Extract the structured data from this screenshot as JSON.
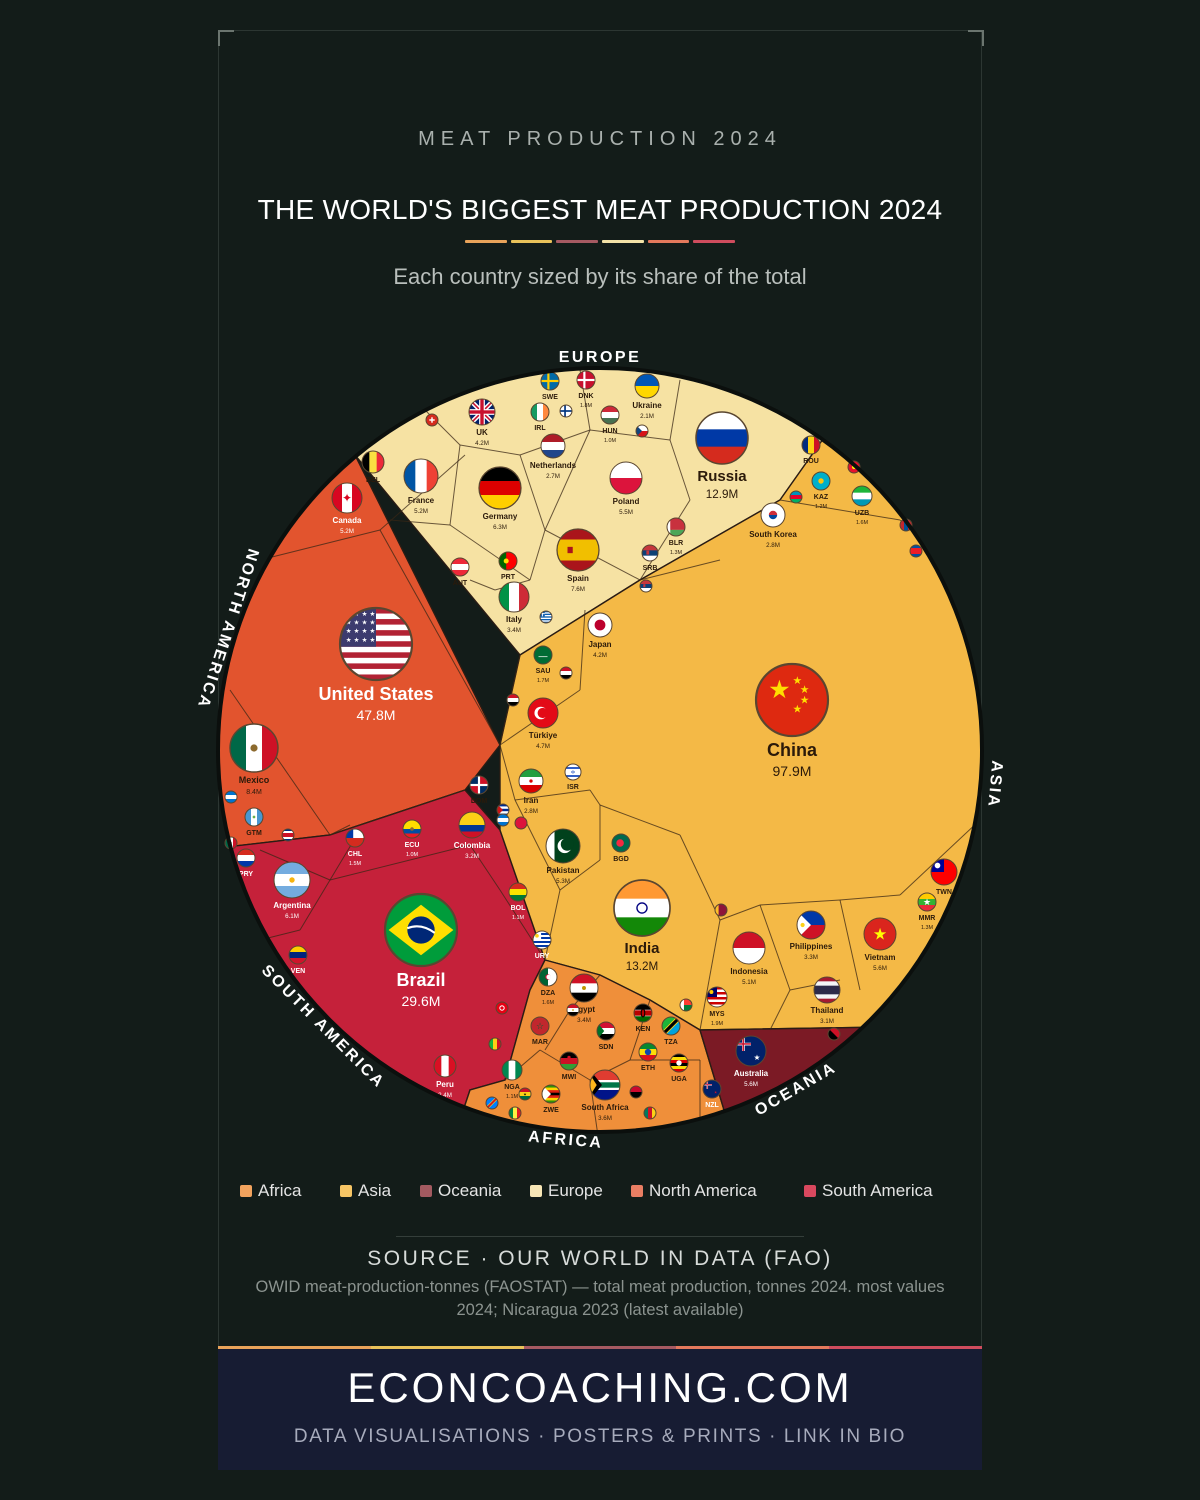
{
  "header": {
    "kicker": "MEAT PRODUCTION 2024",
    "title": "THE WORLD'S BIGGEST MEAT PRODUCTION 2024",
    "subtitle": "Each country sized by its share of the total"
  },
  "colors": {
    "background": "#131c19",
    "Africa": "#ef8f3a",
    "Asia": "#f4b946",
    "Oceania": "#7b1a25",
    "Europe": "#f6e2a3",
    "North America": "#e2542e",
    "South America": "#c5213a",
    "legend_Africa": "#f2a35e",
    "legend_Asia": "#f6c565",
    "legend_Oceania": "#a35a60",
    "legend_Europe": "#f7e6b6",
    "legend_North America": "#e97e63",
    "legend_South America": "#d9485e"
  },
  "chart_data": {
    "type": "voronoi-treemap",
    "unit": "tonnes",
    "regions": [
      "EUROPE",
      "ASIA",
      "OCEANIA",
      "AFRICA",
      "SOUTH AMERICA",
      "NORTH AMERICA"
    ],
    "legend": [
      "Africa",
      "Asia",
      "Oceania",
      "Europe",
      "North America",
      "South America"
    ],
    "legend_placement": "bottom",
    "countries": [
      {
        "label": "China",
        "region": "Asia",
        "value_label": "97.9M",
        "value": 97900000,
        "flag": "china-flag-icon"
      },
      {
        "label": "United States",
        "region": "North America",
        "value_label": "47.8M",
        "value": 47800000,
        "flag": "usa-flag-icon"
      },
      {
        "label": "Brazil",
        "region": "South America",
        "value_label": "29.6M",
        "value": 29600000,
        "flag": "brazil-flag-icon"
      },
      {
        "label": "India",
        "region": "Asia",
        "value_label": "13.2M",
        "value": 13200000,
        "flag": "india-flag-icon"
      },
      {
        "label": "Russia",
        "region": "Europe",
        "value_label": "12.9M",
        "value": 12900000,
        "flag": "russia-flag-icon"
      },
      {
        "label": "Mexico",
        "region": "North America",
        "value_label": "8.4M",
        "value": 8400000,
        "flag": "mexico-flag-icon"
      },
      {
        "label": "Germany",
        "region": "Europe",
        "value_label": "6.3M",
        "value": 6300000,
        "flag": "germany-flag-icon"
      },
      {
        "label": "Spain",
        "region": "Europe",
        "value_label": "7.6M",
        "value": 7600000,
        "flag": "spain-flag-icon"
      },
      {
        "label": "Vietnam",
        "region": "Asia",
        "value_label": "5.6M",
        "value": 5600000,
        "flag": "vietnam-flag-icon"
      },
      {
        "label": "Australia",
        "region": "Oceania",
        "value_label": "5.6M",
        "value": 5600000,
        "flag": "australia-flag-icon"
      },
      {
        "label": "Poland",
        "region": "Europe",
        "value_label": "5.5M",
        "value": 5500000,
        "flag": "poland-flag-icon"
      },
      {
        "label": "Pakistan",
        "region": "Asia",
        "value_label": "5.3M",
        "value": 5300000,
        "flag": "pakistan-flag-icon"
      },
      {
        "label": "France",
        "region": "Europe",
        "value_label": "5.2M",
        "value": 5200000,
        "flag": "france-flag-icon"
      },
      {
        "label": "Canada",
        "region": "North America",
        "value_label": "5.2M",
        "value": 5200000,
        "flag": "canada-flag-icon"
      },
      {
        "label": "Indonesia",
        "region": "Asia",
        "value_label": "5.1M",
        "value": 5100000,
        "flag": "indonesia-flag-icon"
      },
      {
        "label": "Türkiye",
        "region": "Asia",
        "value_label": "4.7M",
        "value": 4700000,
        "flag": "turkey-flag-icon"
      },
      {
        "label": "UK",
        "region": "Europe",
        "value_label": "4.2M",
        "value": 4200000,
        "flag": "uk-flag-icon"
      },
      {
        "label": "Japan",
        "region": "Asia",
        "value_label": "4.2M",
        "value": 4200000,
        "flag": "japan-flag-icon"
      },
      {
        "label": "Argentina",
        "region": "South America",
        "value_label": "6.1M",
        "value": 6100000,
        "flag": "argentina-flag-icon"
      },
      {
        "label": "South Africa",
        "region": "Africa",
        "value_label": "3.6M",
        "value": 3600000,
        "flag": "south-africa-flag-icon"
      },
      {
        "label": "Thailand",
        "region": "Asia",
        "value_label": "3.1M",
        "value": 3100000,
        "flag": "thailand-flag-icon"
      },
      {
        "label": "Philippines",
        "region": "Asia",
        "value_label": "3.3M",
        "value": 3300000,
        "flag": "philippines-flag-icon"
      },
      {
        "label": "Colombia",
        "region": "South America",
        "value_label": "3.2M",
        "value": 3200000,
        "flag": "colombia-flag-icon"
      },
      {
        "label": "Italy",
        "region": "Europe",
        "value_label": "3.4M",
        "value": 3400000,
        "flag": "italy-flag-icon"
      },
      {
        "label": "Egypt",
        "region": "Africa",
        "value_label": "3.4M",
        "value": 3400000,
        "flag": "egypt-flag-icon"
      },
      {
        "label": "South Korea",
        "region": "Asia",
        "value_label": "2.8M",
        "value": 2800000,
        "flag": "south-korea-flag-icon"
      },
      {
        "label": "Iran",
        "region": "Asia",
        "value_label": "2.8M",
        "value": 2800000,
        "flag": "iran-flag-icon"
      },
      {
        "label": "Netherlands",
        "region": "Europe",
        "value_label": "2.7M",
        "value": 2700000,
        "flag": "netherlands-flag-icon"
      },
      {
        "label": "Ukraine",
        "region": "Europe",
        "value_label": "2.1M",
        "value": 2100000,
        "flag": "ukraine-flag-icon"
      },
      {
        "label": "Peru",
        "region": "South America",
        "value_label": "2.4M",
        "value": 2400000,
        "flag": "peru-flag-icon"
      },
      {
        "label": "MYS",
        "region": "Asia",
        "value_label": "1.9M",
        "value": 1900000,
        "flag": "malaysia-flag-icon"
      },
      {
        "label": "SAU",
        "region": "Asia",
        "value_label": "1.7M",
        "value": 1700000,
        "flag": "saudi-flag-icon"
      },
      {
        "label": "DNK",
        "region": "Europe",
        "value_label": "1.8M",
        "value": 1800000,
        "flag": "denmark-flag-icon"
      },
      {
        "label": "CHL",
        "region": "South America",
        "value_label": "1.5M",
        "value": 1500000,
        "flag": "chile-flag-icon"
      },
      {
        "label": "DZA",
        "region": "Africa",
        "value_label": "1.6M",
        "value": 1600000,
        "flag": "algeria-flag-icon"
      },
      {
        "label": "HUN",
        "region": "Europe",
        "value_label": "1.0M",
        "value": 1000000,
        "flag": "hungary-flag-icon"
      },
      {
        "label": "ECU",
        "region": "South America",
        "value_label": "1.0M",
        "value": 1000000,
        "flag": "ecuador-flag-icon"
      },
      {
        "label": "BOL",
        "region": "South America",
        "value_label": "1.1M",
        "value": 1100000,
        "flag": "bolivia-flag-icon"
      },
      {
        "label": "NGA",
        "region": "Africa",
        "value_label": "1.1M",
        "value": 1100000,
        "flag": "nigeria-flag-icon"
      },
      {
        "label": "KAZ",
        "region": "Asia",
        "value_label": "1.2M",
        "value": 1200000,
        "flag": "kazakhstan-flag-icon"
      },
      {
        "label": "UZB",
        "region": "Asia",
        "value_label": "1.6M",
        "value": 1600000,
        "flag": "uzbekistan-flag-icon"
      },
      {
        "label": "BLR",
        "region": "Europe",
        "value_label": "1.3M",
        "value": 1300000,
        "flag": "belarus-flag-icon"
      },
      {
        "label": "MMR",
        "region": "Asia",
        "value_label": "1.3M",
        "value": 1300000,
        "flag": "myanmar-flag-icon"
      },
      {
        "label": "ETH",
        "region": "Africa",
        "value_label": "",
        "flag": "ethiopia-flag-icon"
      },
      {
        "label": "TZA",
        "region": "Africa",
        "value_label": "",
        "flag": "tanzania-flag-icon"
      },
      {
        "label": "KEN",
        "region": "Africa",
        "value_label": "",
        "flag": "kenya-flag-icon"
      },
      {
        "label": "SDN",
        "region": "Africa",
        "value_label": "",
        "flag": "sudan-flag-icon"
      },
      {
        "label": "MAR",
        "region": "Africa",
        "value_label": "",
        "flag": "morocco-flag-icon"
      },
      {
        "label": "UGA",
        "region": "Africa",
        "value_label": "",
        "flag": "uganda-flag-icon"
      },
      {
        "label": "NZL",
        "region": "Oceania",
        "value_label": "",
        "flag": "new-zealand-flag-icon"
      },
      {
        "label": "ROU",
        "region": "Europe",
        "value_label": "",
        "flag": "romania-flag-icon"
      },
      {
        "label": "SWE",
        "region": "Europe",
        "value_label": "",
        "flag": "sweden-flag-icon"
      },
      {
        "label": "IRL",
        "region": "Europe",
        "value_label": "",
        "flag": "ireland-flag-icon"
      },
      {
        "label": "BEL",
        "region": "Europe",
        "value_label": "",
        "flag": "belgium-flag-icon"
      },
      {
        "label": "PRT",
        "region": "Europe",
        "value_label": "",
        "flag": "portugal-flag-icon"
      },
      {
        "label": "AUT",
        "region": "Europe",
        "value_label": "",
        "flag": "austria-flag-icon"
      },
      {
        "label": "SRB",
        "region": "Europe",
        "value_label": "",
        "flag": "serbia-flag-icon"
      },
      {
        "label": "ISR",
        "region": "Asia",
        "value_label": "",
        "flag": "israel-flag-icon"
      },
      {
        "label": "BGD",
        "region": "Asia",
        "value_label": "",
        "flag": "bangladesh-flag-icon"
      },
      {
        "label": "TWN",
        "region": "Asia",
        "value_label": "",
        "flag": "taiwan-flag-icon"
      },
      {
        "label": "GTM",
        "region": "North America",
        "value_label": "",
        "flag": "guatemala-flag-icon"
      },
      {
        "label": "DOM",
        "region": "North America",
        "value_label": "",
        "flag": "dominican-flag-icon"
      },
      {
        "label": "URY",
        "region": "South America",
        "value_label": "",
        "flag": "uruguay-flag-icon"
      },
      {
        "label": "PRY",
        "region": "South America",
        "value_label": "",
        "flag": "paraguay-flag-icon"
      },
      {
        "label": "VEN",
        "region": "South America",
        "value_label": "",
        "flag": "venezuela-flag-icon"
      },
      {
        "label": "ZWE",
        "region": "Africa",
        "value_label": "",
        "flag": "zimbabwe-flag-icon"
      },
      {
        "label": "MWI",
        "region": "Africa",
        "value_label": "",
        "flag": "malawi-flag-icon"
      }
    ]
  },
  "legend": {
    "items": [
      {
        "label": "Africa",
        "color": "#f2a35e"
      },
      {
        "label": "Asia",
        "color": "#f6c565"
      },
      {
        "label": "Oceania",
        "color": "#a35a60"
      },
      {
        "label": "Europe",
        "color": "#f7e6b6"
      },
      {
        "label": "North America",
        "color": "#e97e63"
      },
      {
        "label": "South America",
        "color": "#d9485e"
      }
    ]
  },
  "source": {
    "heading": "SOURCE · OUR WORLD IN DATA (FAO)",
    "note": "OWID meat-production-tonnes (FAOSTAT) — total meat production, tonnes 2024. most values 2024; Nicaragua 2023 (latest available)"
  },
  "footer": {
    "brand": "ECONCOACHING.COM",
    "tagline": "DATA VISUALISATIONS · POSTERS & PRINTS · LINK IN BIO"
  }
}
